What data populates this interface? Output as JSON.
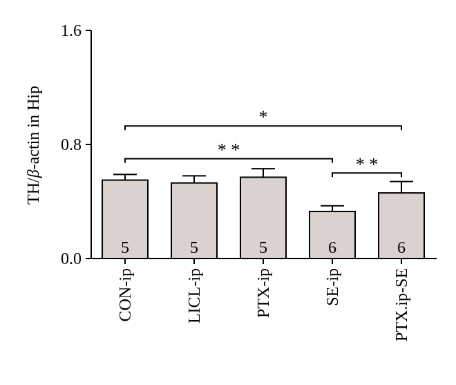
{
  "chart_data": {
    "type": "bar",
    "ylabel": "TH/β-actin in Hip",
    "ylabel_prefix": "TH/",
    "ylabel_symbol": "β",
    "ylabel_suffix": "-actin in Hip",
    "ylim": [
      0,
      1.6
    ],
    "yticks": [
      0.0,
      0.8,
      1.6
    ],
    "ytick_labels": [
      "0.0",
      "0.8",
      "1.6"
    ],
    "categories": [
      "CON-ip",
      "LICL-ip",
      "PTX-ip",
      "SE-ip",
      "PTX.ip-SE"
    ],
    "values": [
      0.55,
      0.53,
      0.57,
      0.33,
      0.46
    ],
    "errors": [
      0.04,
      0.05,
      0.06,
      0.04,
      0.08
    ],
    "n": [
      "5",
      "5",
      "5",
      "6",
      "6"
    ],
    "bar_color": "#d9d2cf",
    "significance": [
      {
        "from": 0,
        "to": 4,
        "level": 0.93,
        "label": "*"
      },
      {
        "from": 0,
        "to": 3,
        "level": 0.7,
        "label": "* *"
      },
      {
        "from": 3,
        "to": 4,
        "level": 0.6,
        "label": "* *"
      }
    ]
  }
}
